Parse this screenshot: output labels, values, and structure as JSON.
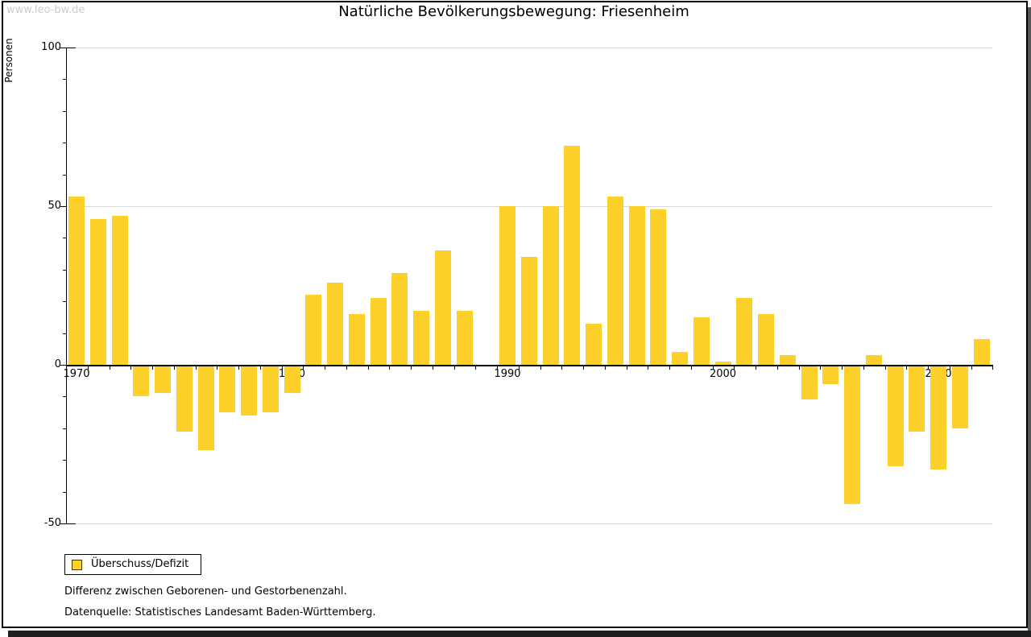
{
  "page": {
    "watermark": "www.leo-bw.de",
    "background_color": "#ffffff",
    "frame_border_color": "#000000",
    "shadow_right_color": "#58585a",
    "shadow_bottom_color": "#1f1f1f"
  },
  "chart_data": {
    "type": "bar",
    "title": "Natürliche Bevölkerungsbewegung: Friesenheim",
    "ylabel": "Personen",
    "xlabel": "",
    "series": [
      {
        "name": "Überschuss/Defizit",
        "values": [
          53,
          46,
          47,
          -10,
          -9,
          -21,
          -27,
          -15,
          -16,
          -15,
          -9,
          22,
          26,
          16,
          21,
          29,
          17,
          36,
          17,
          0,
          50,
          34,
          50,
          69,
          13,
          53,
          50,
          49,
          4,
          15,
          1,
          21,
          16,
          3,
          -11,
          -6,
          -44,
          3,
          -32,
          -21,
          -33,
          -20,
          8
        ]
      }
    ],
    "x": [
      1970,
      1971,
      1972,
      1973,
      1974,
      1975,
      1976,
      1977,
      1978,
      1979,
      1980,
      1981,
      1982,
      1983,
      1984,
      1985,
      1986,
      1987,
      1988,
      1989,
      1990,
      1991,
      1992,
      1993,
      1994,
      1995,
      1996,
      1997,
      1998,
      1999,
      2000,
      2001,
      2002,
      2003,
      2004,
      2005,
      2006,
      2007,
      2008,
      2009,
      2010,
      2011,
      2012
    ],
    "ylim": [
      -50,
      100
    ],
    "yticks_major": [
      100,
      50,
      0,
      -50
    ],
    "ytick_minor_step": 10,
    "gridline_values": [
      100,
      50,
      -50
    ],
    "xtick_labels": [
      "1970",
      "1980",
      "1990",
      "2000",
      "2010"
    ],
    "grid": true,
    "legend_position": "bottom-left",
    "bar_color": "#FCD12A",
    "zero_value_years": [
      1989
    ]
  },
  "legend": {
    "swatch_color": "#FCD12A",
    "swatch_border_color": "#333333"
  },
  "footnotes": [
    "Differenz zwischen Geborenen- und Gestorbenenzahl.",
    "Datenquelle: Statistisches Landesamt Baden-Württemberg."
  ]
}
